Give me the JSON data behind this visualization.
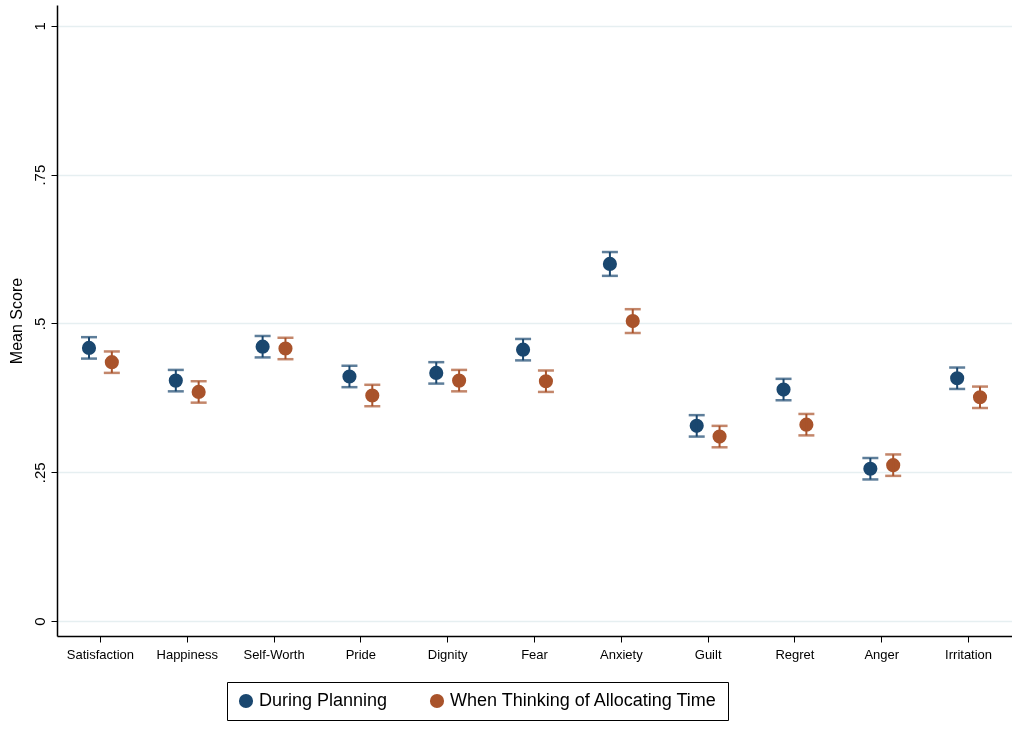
{
  "chart_data": {
    "type": "scatter",
    "ylabel": "Mean Score",
    "categories": [
      "Satisfaction",
      "Happiness",
      "Self-Worth",
      "Pride",
      "Dignity",
      "Fear",
      "Anxiety",
      "Guilt",
      "Regret",
      "Anger",
      "Irritation"
    ],
    "series": [
      {
        "name": "During Planning",
        "color": "#1a476f",
        "values": [
          0.459,
          0.404,
          0.461,
          0.411,
          0.417,
          0.456,
          0.6,
          0.328,
          0.389,
          0.256,
          0.408
        ],
        "errors": [
          0.018,
          0.018,
          0.018,
          0.018,
          0.018,
          0.018,
          0.02,
          0.018,
          0.018,
          0.018,
          0.018
        ]
      },
      {
        "name": "When Thinking of Allocating Time",
        "color": "#a9532b",
        "values": [
          0.435,
          0.385,
          0.458,
          0.379,
          0.404,
          0.403,
          0.504,
          0.31,
          0.33,
          0.262,
          0.376
        ],
        "errors": [
          0.018,
          0.018,
          0.018,
          0.018,
          0.018,
          0.018,
          0.02,
          0.018,
          0.018,
          0.018,
          0.018
        ]
      }
    ],
    "ylim": [
      -0.025,
      1.035
    ],
    "yticks": [
      0,
      {
        "value": 0.25,
        "label": ".25"
      },
      {
        "value": 0.5,
        "label": ".5"
      },
      {
        "value": 0.75,
        "label": ".75"
      },
      1
    ],
    "grid": "y",
    "legend": "bottom",
    "marker": "circle"
  }
}
